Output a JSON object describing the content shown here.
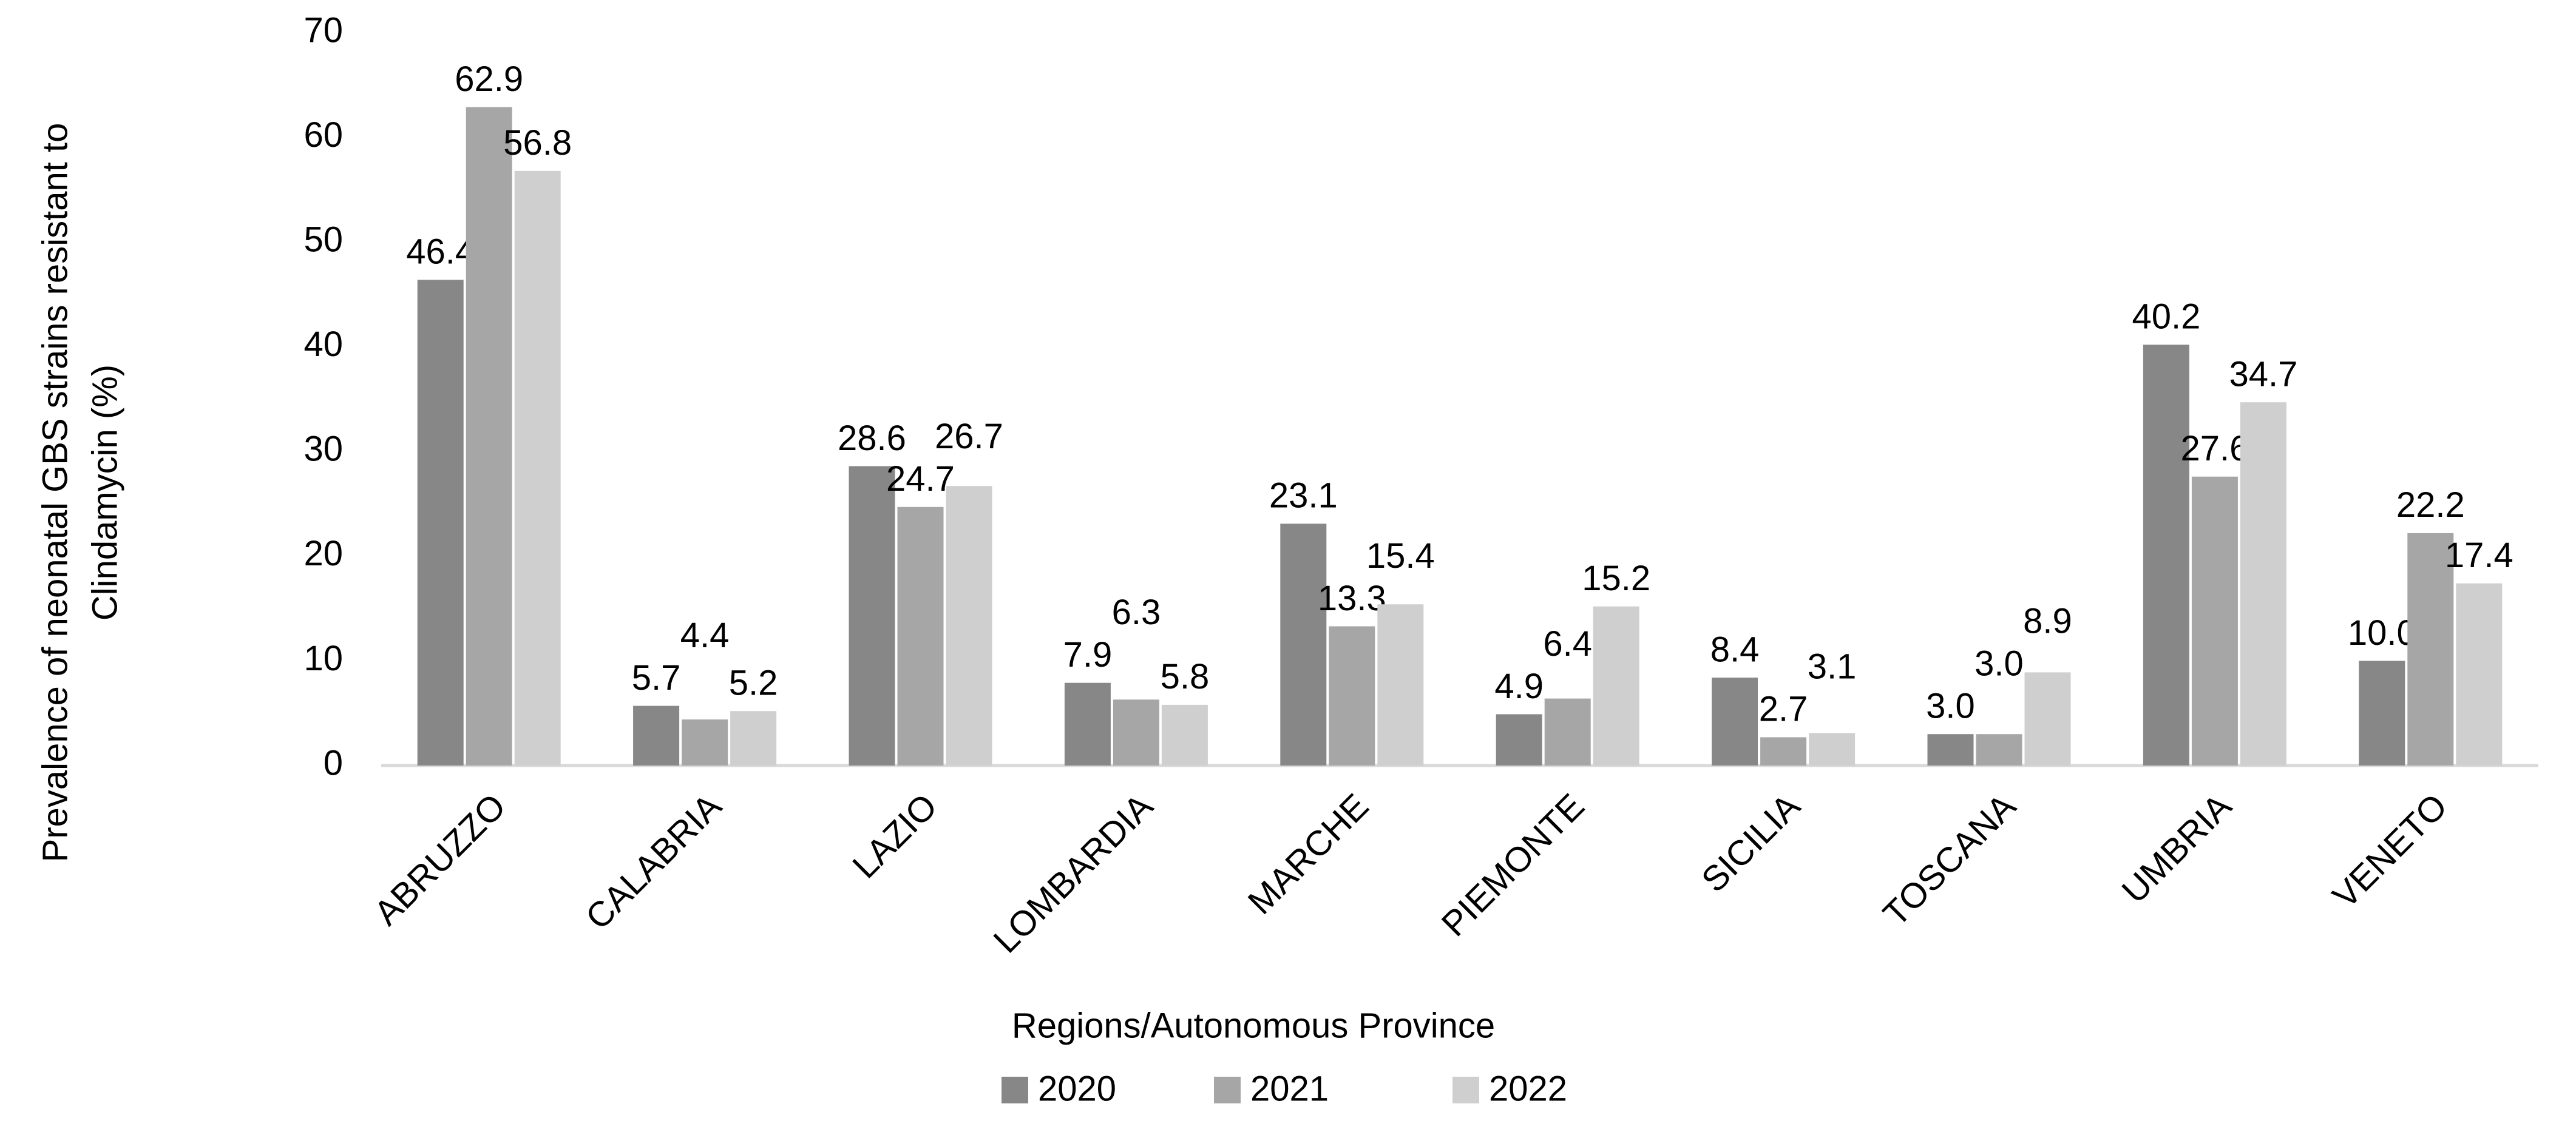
{
  "chart_data": {
    "type": "bar",
    "y_label": [
      "Prevalence of neonatal GBS strains resistant to",
      "Clindamycin (%)"
    ],
    "x_label": "Regions/Autonomous Province",
    "categories": [
      "ABRUZZO",
      "CALABRIA",
      "LAZIO",
      "LOMBARDIA",
      "MARCHE",
      "PIEMONTE",
      "SICILIA",
      "TOSCANA",
      "UMBRIA",
      "VENETO"
    ],
    "series": [
      {
        "name": "2020",
        "color": "#878787",
        "values": [
          46.4,
          5.7,
          28.6,
          7.9,
          23.1,
          4.9,
          8.4,
          3.0,
          40.2,
          10.0
        ],
        "value_labels": [
          "46.4",
          "5.7",
          "28.6",
          "7.9",
          "23.1",
          "4.9",
          "8.4",
          "3.0",
          "40.2",
          "10.0"
        ]
      },
      {
        "name": "2021",
        "color": "#a6a6a6",
        "values": [
          62.9,
          4.4,
          24.7,
          6.3,
          13.3,
          6.4,
          2.7,
          3.0,
          27.6,
          22.2
        ],
        "value_labels": [
          "62.9",
          "4.4",
          "24.7",
          "6.3",
          "13.3",
          "6.4",
          "2.7",
          "3.0",
          "27.6",
          "22.2"
        ]
      },
      {
        "name": "2022",
        "color": "#cfcfcf",
        "values": [
          56.8,
          5.2,
          26.7,
          5.8,
          15.4,
          15.2,
          3.1,
          8.9,
          34.7,
          17.4
        ],
        "value_labels": [
          "56.8",
          "5.2",
          "26.7",
          "5.8",
          "15.4",
          "15.2",
          "3.1",
          "8.9",
          "34.7",
          "17.4"
        ]
      }
    ],
    "ylim": [
      0,
      70
    ],
    "yticks": [
      0,
      10,
      20,
      30,
      40,
      50,
      60,
      70
    ],
    "grid": false,
    "legend": "bottom"
  }
}
